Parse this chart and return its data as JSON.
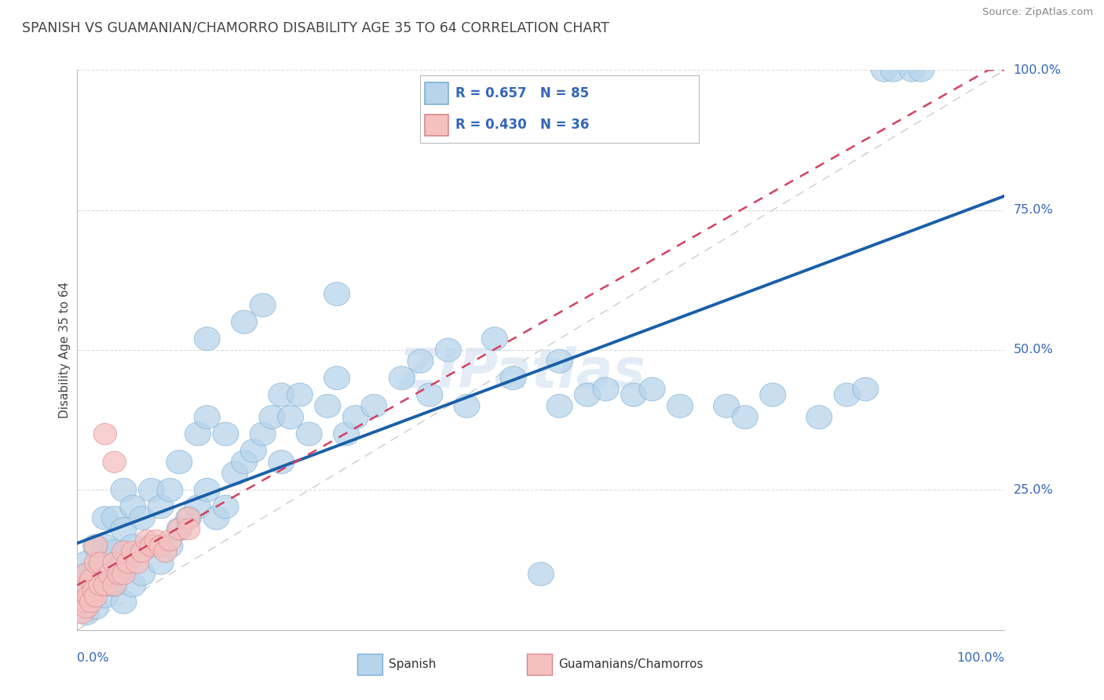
{
  "title": "SPANISH VS GUAMANIAN/CHAMORRO DISABILITY AGE 35 TO 64 CORRELATION CHART",
  "source": "Source: ZipAtlas.com",
  "ylabel": "Disability Age 35 to 64",
  "R_spanish": 0.657,
  "N_spanish": 85,
  "R_chamorro": 0.43,
  "N_chamorro": 36,
  "blue_face": "#b8d4ea",
  "blue_edge": "#7bafd4",
  "blue_line": "#1a5fa8",
  "pink_face": "#f5c0c0",
  "pink_edge": "#d88888",
  "pink_line": "#d44060",
  "ref_line_color": "#cccccc",
  "grid_color": "#dddddd",
  "text_color": "#3366bb",
  "title_color": "#444444",
  "source_color": "#888888",
  "watermark_color": "#ccddef",
  "watermark_text": "ZIPatlas",
  "legend_label1": "R = 0.657   N = 85",
  "legend_label2": "R = 0.430   N = 36",
  "legend_bottom1": "Spanish",
  "legend_bottom2": "Guamanians/Chamorros",
  "blue_x": [
    1,
    1,
    1,
    1,
    1,
    2,
    2,
    2,
    2,
    3,
    3,
    3,
    3,
    4,
    4,
    4,
    5,
    5,
    5,
    5,
    6,
    6,
    6,
    7,
    7,
    8,
    8,
    9,
    9,
    10,
    10,
    11,
    11,
    12,
    13,
    13,
    14,
    14,
    15,
    16,
    16,
    17,
    18,
    19,
    20,
    21,
    22,
    22,
    23,
    24,
    25,
    27,
    28,
    29,
    30,
    32,
    35,
    37,
    38,
    40,
    42,
    45,
    47,
    50,
    52,
    55,
    57,
    60,
    62,
    65,
    70,
    72,
    75,
    80,
    83,
    85,
    87,
    88,
    90,
    91,
    52,
    28,
    20,
    18,
    14
  ],
  "blue_y": [
    3,
    5,
    8,
    10,
    12,
    4,
    7,
    10,
    15,
    6,
    10,
    15,
    20,
    8,
    14,
    20,
    5,
    12,
    18,
    25,
    8,
    15,
    22,
    10,
    20,
    15,
    25,
    12,
    22,
    15,
    25,
    18,
    30,
    20,
    22,
    35,
    25,
    38,
    20,
    22,
    35,
    28,
    30,
    32,
    35,
    38,
    30,
    42,
    38,
    42,
    35,
    40,
    45,
    35,
    38,
    40,
    45,
    48,
    42,
    50,
    40,
    52,
    45,
    10,
    40,
    42,
    43,
    42,
    43,
    40,
    40,
    38,
    42,
    38,
    42,
    43,
    100,
    100,
    100,
    100,
    48,
    60,
    58,
    55,
    52
  ],
  "pink_x": [
    0.5,
    0.8,
    1,
    1,
    1,
    1.2,
    1.5,
    1.5,
    1.8,
    2,
    2,
    2,
    2.5,
    2.5,
    3,
    3,
    3.5,
    4,
    4,
    4,
    4.5,
    5,
    5,
    5.5,
    6,
    6.5,
    7,
    7.5,
    8,
    8.5,
    9,
    9.5,
    10,
    11,
    12,
    12
  ],
  "pink_y": [
    3,
    5,
    4,
    8,
    10,
    6,
    5,
    9,
    7,
    6,
    12,
    15,
    8,
    12,
    8,
    35,
    10,
    8,
    12,
    30,
    10,
    10,
    14,
    12,
    14,
    12,
    14,
    16,
    15,
    16,
    15,
    14,
    16,
    18,
    20,
    18
  ]
}
